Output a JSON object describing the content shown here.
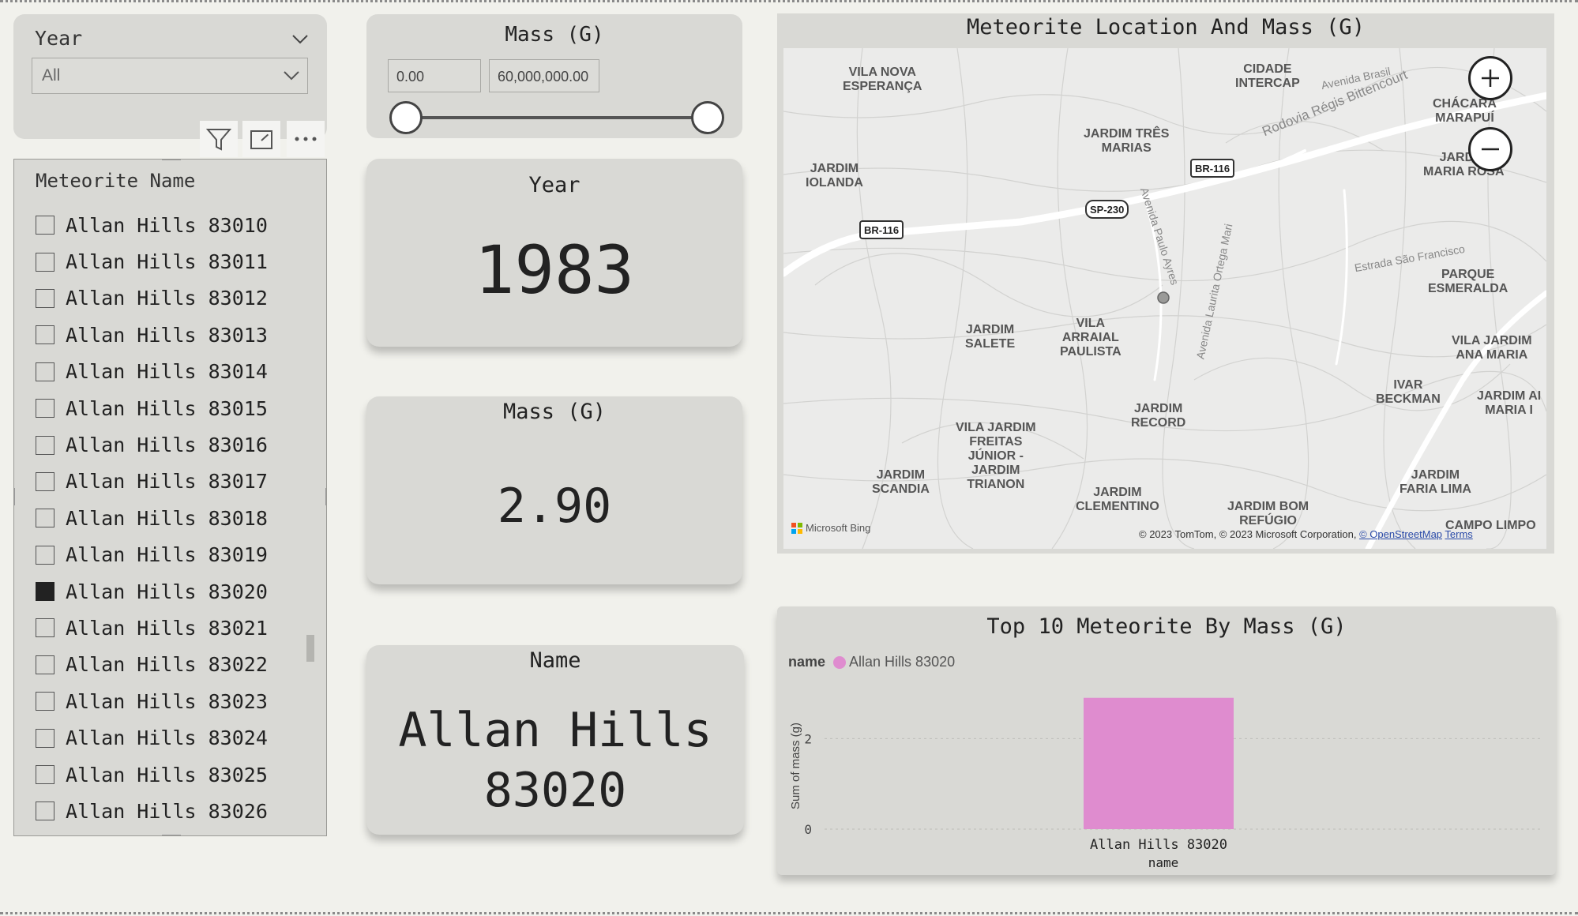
{
  "year_slicer": {
    "title": "Year",
    "selected": "All"
  },
  "name_slicer": {
    "title": "Meteorite Name",
    "items": [
      {
        "label": "Allan Hills 83010",
        "checked": false
      },
      {
        "label": "Allan Hills 83011",
        "checked": false
      },
      {
        "label": "Allan Hills 83012",
        "checked": false
      },
      {
        "label": "Allan Hills 83013",
        "checked": false
      },
      {
        "label": "Allan Hills 83014",
        "checked": false
      },
      {
        "label": "Allan Hills 83015",
        "checked": false
      },
      {
        "label": "Allan Hills 83016",
        "checked": false
      },
      {
        "label": "Allan Hills 83017",
        "checked": false
      },
      {
        "label": "Allan Hills 83018",
        "checked": false
      },
      {
        "label": "Allan Hills 83019",
        "checked": false
      },
      {
        "label": "Allan Hills 83020",
        "checked": true
      },
      {
        "label": "Allan Hills 83021",
        "checked": false
      },
      {
        "label": "Allan Hills 83022",
        "checked": false
      },
      {
        "label": "Allan Hills 83023",
        "checked": false
      },
      {
        "label": "Allan Hills 83024",
        "checked": false
      },
      {
        "label": "Allan Hills 83025",
        "checked": false
      },
      {
        "label": "Allan Hills 83026",
        "checked": false
      }
    ]
  },
  "visual_header": {
    "icons": [
      "filter-icon",
      "focus-mode-icon",
      "more-options-icon"
    ]
  },
  "mass_slicer": {
    "title": "Mass (G)",
    "min_value": "0.00",
    "max_value": "60,000,000.00",
    "range_fraction": [
      0,
      1
    ]
  },
  "kpi_year": {
    "title": "Year",
    "value": "1983"
  },
  "kpi_mass": {
    "title": "Mass (G)",
    "value": "2.90"
  },
  "kpi_name": {
    "title": "Name",
    "value_line1": "Allan Hills",
    "value_line2": "83020"
  },
  "map": {
    "title": "Meteorite Location And Mass (G)",
    "places": [
      "VILA NOVA\nESPERANÇA",
      "CIDADE\nINTERCAP",
      "CHÁCARA\nMARAPUÍ",
      "JARDIM TRÊS\nMARIAS",
      "JARDIM\nIOLANDA",
      "JARDIM\nMARIA ROSA",
      "PARQUE\nESMERALDA",
      "JARDIM\nSALETE",
      "VILA\nARRAIAL\nPAULISTA",
      "VILA JARDIM\nANA MARIA",
      "IVAR\nBECKMAN",
      "JARDIM AI\nMARIA I",
      "JARDIM\nRECORD",
      "VILA JARDIM\nFREITAS\nJÚNIOR -\nJARDIM\nTRIANON",
      "JARDIM\nSCANDIA",
      "JARDIM\nCLEMENTINO",
      "JARDIM BOM\nREFÚGIO",
      "JARDIM\nFARIA LIMA",
      "CAMPO LIMPO"
    ],
    "roads": [
      "Rodovia Régis Bittencourt",
      "Avenida Brasil",
      "Avenida Paulo Ayres",
      "Avenida Laurita Ortega Mari",
      "Estrada São Francisco"
    ],
    "shields": [
      "BR-116",
      "SP-230",
      "BR-116"
    ],
    "attribution": "© 2023 TomTom, © 2023 Microsoft Corporation,",
    "osm_link": "© OpenStreetMap",
    "terms_link": "Terms",
    "logo_text": "Microsoft Bing"
  },
  "chart_data": {
    "type": "bar",
    "title": "Top 10 Meteorite By Mass (G)",
    "legend_title": "name",
    "categories": [
      "Allan Hills 83020"
    ],
    "series": [
      {
        "name": "Allan Hills 83020",
        "values": [
          2.9
        ]
      }
    ],
    "xlabel": "name",
    "ylabel": "Sum of mass (g)",
    "ylim": [
      0,
      3
    ],
    "yticks": [
      0,
      2
    ],
    "color": "#df8ccf",
    "grid": true,
    "legend_position": "top-left"
  }
}
